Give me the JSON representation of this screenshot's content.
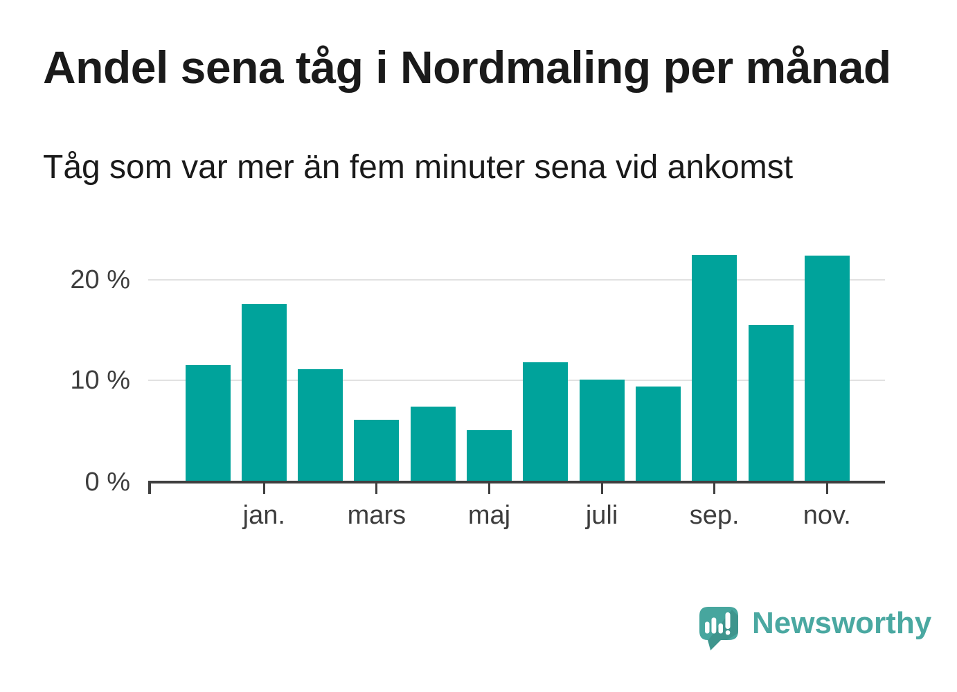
{
  "page": {
    "title": "Andel sena tåg i Nordmaling per månad",
    "subtitle": "Tåg som var mer än fem minuter sena vid ankomst"
  },
  "chart_data": {
    "type": "bar",
    "title": "Andel sena tåg i Nordmaling per månad",
    "subtitle": "Tåg som var mer än fem minuter sena vid ankomst",
    "unit": "%",
    "categories": [
      "",
      "jan.",
      "",
      "mars",
      "",
      "maj",
      "",
      "juli",
      "",
      "sep.",
      "",
      "nov."
    ],
    "values": [
      11.5,
      17.6,
      11.1,
      6.1,
      7.4,
      5.0,
      11.8,
      10.1,
      9.4,
      22.5,
      15.5,
      22.4
    ],
    "y_ticks": [
      {
        "value": 0,
        "label": "0 %"
      },
      {
        "value": 10,
        "label": "10 %"
      },
      {
        "value": 20,
        "label": "20 %"
      }
    ],
    "ylim": [
      0,
      23
    ],
    "xlabel": "",
    "ylabel": "",
    "grid": "horizontal",
    "legend_position": "none",
    "bar_color": "#00a39b"
  },
  "footer": {
    "brand": "Newsworthy"
  },
  "colors": {
    "background": "#ffffff",
    "bar": "#00a39b",
    "axis": "#3f3f3f",
    "grid": "#e1e1e1",
    "axis_label": "#3d3d3d",
    "heading": "#1a1a1a",
    "logo_bubble": "#47a69e",
    "logo_shade_opacity": "0.10",
    "logo_glyph": "#ffffff",
    "logo_text": "#4aa8a1"
  }
}
